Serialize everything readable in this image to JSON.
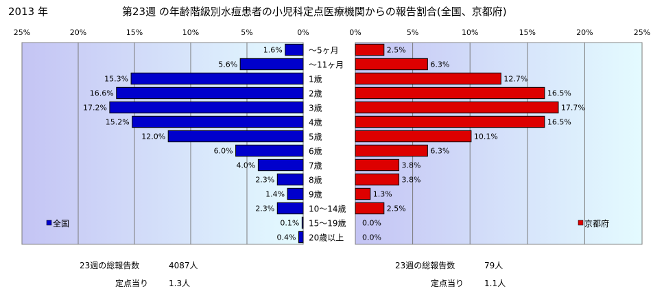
{
  "header": {
    "year": "2013 年",
    "title": "第23週 の年齢階級別水痘患者の小児科定点医療機関からの報告割合(全国、京都府)"
  },
  "chart_data": {
    "type": "bar",
    "orientation": "horizontal-butterfly",
    "categories": [
      "～5ヶ月",
      "～11ヶ月",
      "1歳",
      "2歳",
      "3歳",
      "4歳",
      "5歳",
      "6歳",
      "7歳",
      "8歳",
      "9歳",
      "10～14歳",
      "15～19歳",
      "20歳以上"
    ],
    "xlim": [
      0,
      25
    ],
    "xticks": [
      "25%",
      "20%",
      "15%",
      "10%",
      "5%",
      "0%"
    ],
    "xticks_right": [
      "0%",
      "5%",
      "10%",
      "15%",
      "20%",
      "25%"
    ],
    "series": [
      {
        "name": "全国",
        "side": "left",
        "color": "#0000cc",
        "values": [
          1.6,
          5.6,
          15.3,
          16.6,
          17.2,
          15.2,
          12.0,
          6.0,
          4.0,
          2.3,
          1.4,
          2.3,
          0.1,
          0.4
        ],
        "labels": [
          "1.6%",
          "5.6%",
          "15.3%",
          "16.6%",
          "17.2%",
          "15.2%",
          "12.0%",
          "6.0%",
          "4.0%",
          "2.3%",
          "1.4%",
          "2.3%",
          "0.1%",
          "0.4%"
        ]
      },
      {
        "name": "京都府",
        "side": "right",
        "color": "#dd0000",
        "values": [
          2.5,
          6.3,
          12.7,
          16.5,
          17.7,
          16.5,
          10.1,
          6.3,
          3.8,
          3.8,
          1.3,
          2.5,
          0.0,
          0.0
        ],
        "labels": [
          "2.5%",
          "6.3%",
          "12.7%",
          "16.5%",
          "17.7%",
          "16.5%",
          "10.1%",
          "6.3%",
          "3.8%",
          "3.8%",
          "1.3%",
          "2.5%",
          "0.0%",
          "0.0%"
        ]
      }
    ],
    "grid": true,
    "legend": {
      "left": "全国",
      "right": "京都府",
      "placement": "bottom-left / bottom-right"
    }
  },
  "footer": {
    "left": {
      "reports_label": "23週の総報告数",
      "reports_value": "4087人",
      "per_label": "定点当り",
      "per_value": "1.3人"
    },
    "right": {
      "reports_label": "23週の総報告数",
      "reports_value": "79人",
      "per_label": "定点当り",
      "per_value": "1.1人"
    }
  }
}
